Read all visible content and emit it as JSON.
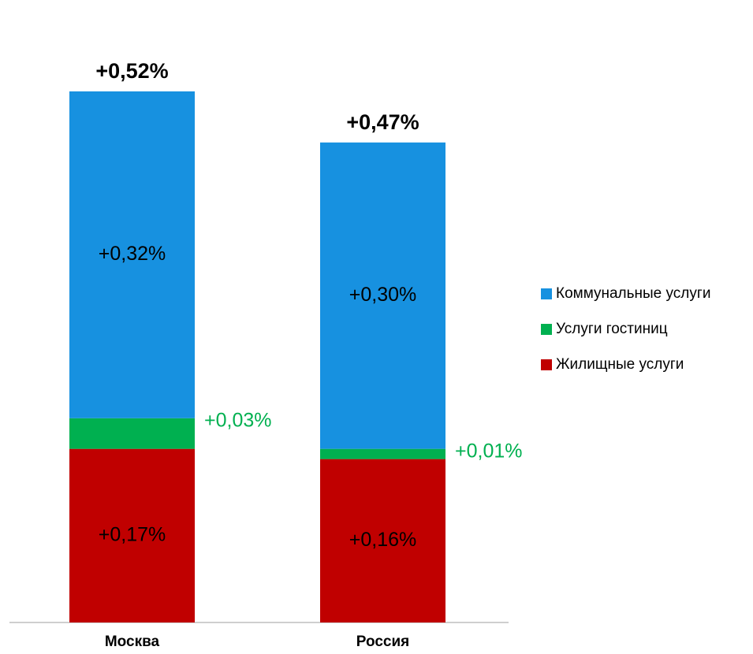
{
  "chart_data": {
    "type": "bar",
    "stacked": true,
    "categories": [
      "Москва",
      "Россия"
    ],
    "totals": [
      0.52,
      0.47
    ],
    "total_labels": [
      "+0,52%",
      "+0,47%"
    ],
    "series": [
      {
        "name": "Жилищные услуги",
        "values": [
          0.17,
          0.16
        ],
        "labels": [
          "+0,17%",
          "+0,16%"
        ],
        "color": "#c00000",
        "label_color": "#000000",
        "label_position": "inside"
      },
      {
        "name": "Услуги гостиниц",
        "values": [
          0.03,
          0.01
        ],
        "labels": [
          "+0,03%",
          "+0,01%"
        ],
        "color": "#00b050",
        "label_color": "#00b050",
        "label_position": "right"
      },
      {
        "name": "Коммунальные услуги",
        "values": [
          0.32,
          0.3
        ],
        "labels": [
          "+0,32%",
          "+0,30%"
        ],
        "color": "#1791e0",
        "label_color": "#000000",
        "label_position": "inside"
      }
    ],
    "legend_order": [
      "Коммунальные услуги",
      "Услуги гостиниц",
      "Жилищные услуги"
    ],
    "legend_position": "right",
    "grid": false,
    "title": "",
    "xlabel": "",
    "ylabel": "",
    "ylim": [
      0,
      0.52
    ]
  }
}
